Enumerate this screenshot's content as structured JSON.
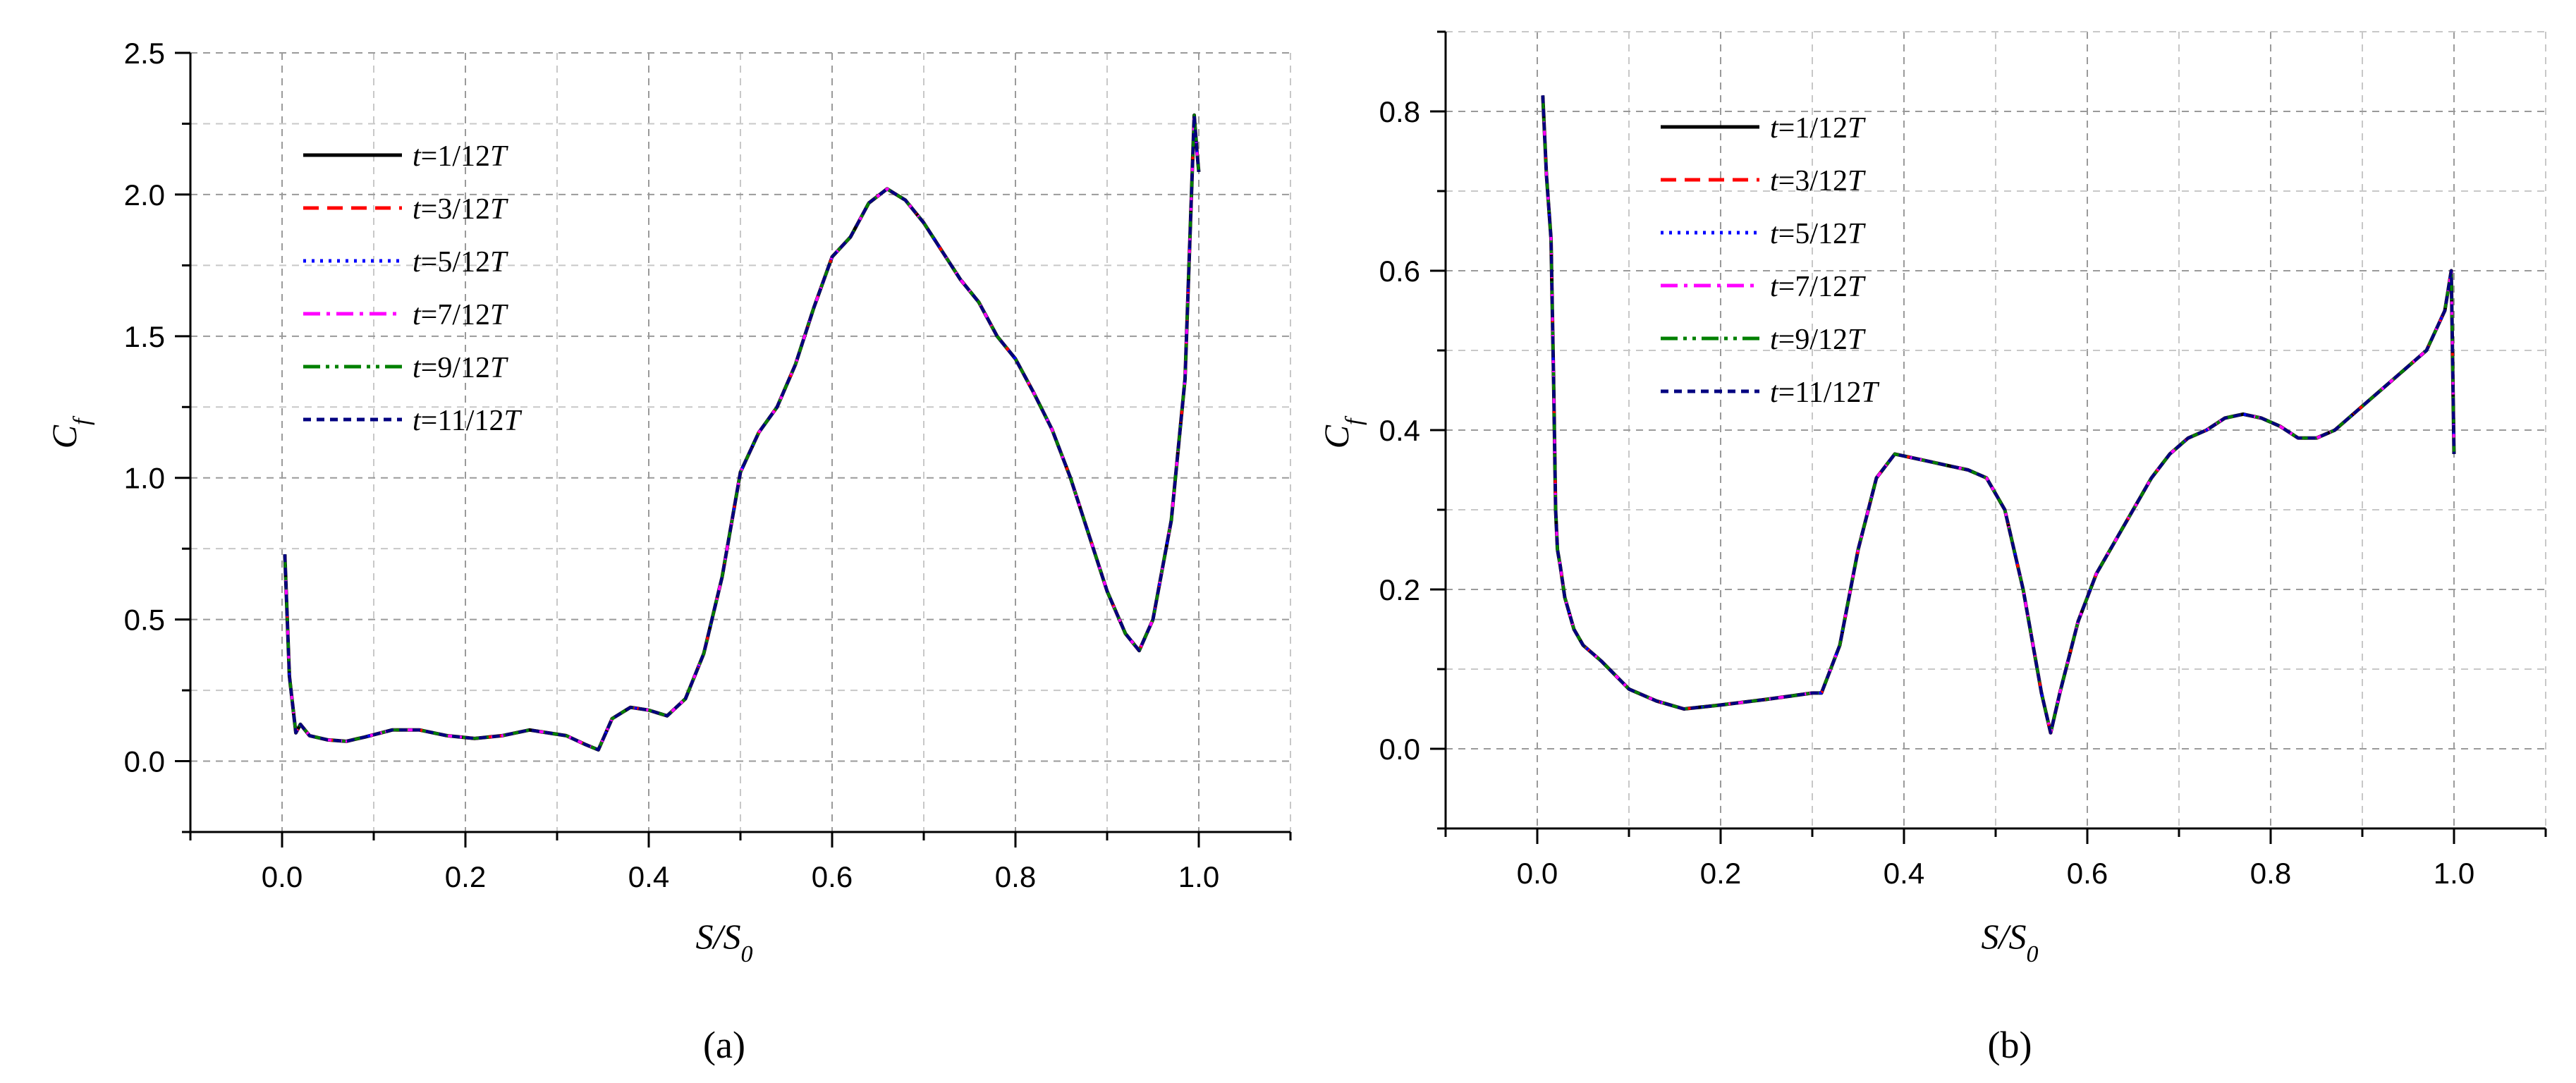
{
  "panels": [
    {
      "panel_label": "(a)",
      "xlabel_main": "S/S",
      "xlabel_sub": "0",
      "ylabel_main": "C",
      "ylabel_sub": "f",
      "legend_labels": [
        "t=1/12T",
        "t=3/12T",
        "t=5/12T",
        "t=7/12T",
        "t=9/12T",
        "t=11/12T"
      ]
    },
    {
      "panel_label": "(b)",
      "xlabel_main": "S/S",
      "xlabel_sub": "0",
      "ylabel_main": "C",
      "ylabel_sub": "f",
      "legend_labels": [
        "t=1/12T",
        "t=3/12T",
        "t=5/12T",
        "t=7/12T",
        "t=9/12T",
        "t=11/12T"
      ]
    }
  ],
  "chart_data": [
    {
      "type": "line",
      "panel": "(a)",
      "xlabel": "S/S0",
      "ylabel": "Cf",
      "xlim": [
        -0.1,
        1.1
      ],
      "ylim": [
        -0.25,
        2.5
      ],
      "xticks": [
        0.0,
        0.2,
        0.4,
        0.6,
        0.8,
        1.0
      ],
      "yticks": [
        0.0,
        0.5,
        1.0,
        1.5,
        2.0,
        2.5
      ],
      "grid": true,
      "legend_position": "top-left",
      "series_styles": [
        {
          "color": "#000000",
          "dash": "none"
        },
        {
          "color": "#ff0000",
          "dash": "dashed"
        },
        {
          "color": "#0000ff",
          "dash": "dotted"
        },
        {
          "color": "#ff00ff",
          "dash": "dash-dot"
        },
        {
          "color": "#008000",
          "dash": "dash-dot-dot"
        },
        {
          "color": "#000080",
          "dash": "short-dash"
        }
      ],
      "x": [
        0.003,
        0.008,
        0.015,
        0.02,
        0.03,
        0.05,
        0.07,
        0.09,
        0.12,
        0.15,
        0.18,
        0.21,
        0.24,
        0.27,
        0.29,
        0.31,
        0.33,
        0.345,
        0.36,
        0.38,
        0.4,
        0.42,
        0.44,
        0.46,
        0.48,
        0.5,
        0.52,
        0.54,
        0.56,
        0.58,
        0.6,
        0.62,
        0.64,
        0.66,
        0.68,
        0.7,
        0.72,
        0.74,
        0.76,
        0.78,
        0.8,
        0.82,
        0.84,
        0.86,
        0.88,
        0.9,
        0.92,
        0.935,
        0.95,
        0.97,
        0.985,
        0.995,
        0.998,
        1.0
      ],
      "values": [
        0.73,
        0.3,
        0.1,
        0.13,
        0.09,
        0.075,
        0.07,
        0.085,
        0.11,
        0.11,
        0.09,
        0.08,
        0.09,
        0.11,
        0.1,
        0.09,
        0.06,
        0.04,
        0.15,
        0.19,
        0.18,
        0.16,
        0.22,
        0.38,
        0.65,
        1.02,
        1.16,
        1.25,
        1.4,
        1.6,
        1.78,
        1.85,
        1.97,
        2.02,
        1.98,
        1.9,
        1.8,
        1.7,
        1.62,
        1.5,
        1.42,
        1.3,
        1.17,
        1.0,
        0.8,
        0.6,
        0.45,
        0.39,
        0.5,
        0.85,
        1.35,
        2.28,
        2.15,
        2.08
      ]
    },
    {
      "type": "line",
      "panel": "(b)",
      "xlabel": "S/S0",
      "ylabel": "Cf",
      "xlim": [
        -0.1,
        1.1
      ],
      "ylim": [
        -0.1,
        0.9
      ],
      "xticks": [
        0.0,
        0.2,
        0.4,
        0.6,
        0.8,
        1.0
      ],
      "yticks": [
        0.0,
        0.2,
        0.4,
        0.6,
        0.8
      ],
      "grid": true,
      "legend_position": "top-center",
      "series_styles": [
        {
          "color": "#000000",
          "dash": "none"
        },
        {
          "color": "#ff0000",
          "dash": "dashed"
        },
        {
          "color": "#0000ff",
          "dash": "dotted"
        },
        {
          "color": "#ff00ff",
          "dash": "dash-dot"
        },
        {
          "color": "#008000",
          "dash": "dash-dot-dot"
        },
        {
          "color": "#000080",
          "dash": "short-dash"
        }
      ],
      "x": [
        0.006,
        0.01,
        0.015,
        0.018,
        0.02,
        0.022,
        0.025,
        0.03,
        0.04,
        0.05,
        0.07,
        0.1,
        0.13,
        0.16,
        0.2,
        0.25,
        0.3,
        0.31,
        0.33,
        0.35,
        0.37,
        0.39,
        0.41,
        0.43,
        0.45,
        0.47,
        0.49,
        0.51,
        0.53,
        0.55,
        0.56,
        0.57,
        0.59,
        0.61,
        0.63,
        0.65,
        0.67,
        0.69,
        0.71,
        0.73,
        0.75,
        0.77,
        0.79,
        0.81,
        0.83,
        0.85,
        0.87,
        0.89,
        0.91,
        0.93,
        0.95,
        0.97,
        0.99,
        0.997,
        1.0
      ],
      "values": [
        0.82,
        0.72,
        0.64,
        0.45,
        0.3,
        0.25,
        0.23,
        0.19,
        0.15,
        0.13,
        0.11,
        0.075,
        0.06,
        0.05,
        0.055,
        0.062,
        0.07,
        0.07,
        0.13,
        0.25,
        0.34,
        0.37,
        0.365,
        0.36,
        0.355,
        0.35,
        0.34,
        0.3,
        0.2,
        0.07,
        0.02,
        0.07,
        0.16,
        0.22,
        0.26,
        0.3,
        0.34,
        0.37,
        0.39,
        0.4,
        0.415,
        0.42,
        0.415,
        0.405,
        0.39,
        0.39,
        0.4,
        0.42,
        0.44,
        0.46,
        0.48,
        0.5,
        0.55,
        0.6,
        0.37
      ]
    }
  ]
}
